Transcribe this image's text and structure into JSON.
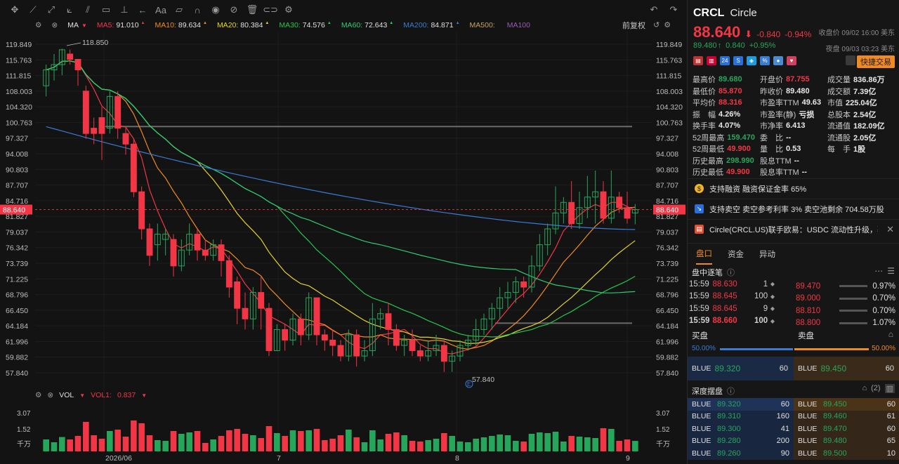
{
  "ma_legend": [
    {
      "label": "MA5:",
      "value": "91.010",
      "color": "#f23645"
    },
    {
      "label": "MA10:",
      "value": "89.634",
      "color": "#f08a24"
    },
    {
      "label": "MA20:",
      "value": "80.384",
      "color": "#e6d22e"
    },
    {
      "label": "MA30:",
      "value": "74.576",
      "color": "#26c64b"
    },
    {
      "label": "MA60:",
      "value": "72.643",
      "color": "#2ecc71"
    },
    {
      "label": "MA200:",
      "value": "84.871",
      "color": "#3a7bd5"
    },
    {
      "label": "MA500:",
      "value": "",
      "color": "#c8a060"
    },
    {
      "label": "MA100",
      "value": "",
      "color": "#9b59b6"
    }
  ],
  "ma_indicator": "MA",
  "fuquan_label": "前复权",
  "vol_indicator": "VOL",
  "vol_value_label": "VOL1:",
  "vol_value": "0.837",
  "price_axis": [
    "119.849",
    "115.763",
    "111.815",
    "108.003",
    "104.320",
    "100.763",
    "97.327",
    "94.008",
    "90.803",
    "87.707",
    "84.716",
    "81.827",
    "79.037",
    "76.342",
    "73.739",
    "71.225",
    "68.796",
    "66.450",
    "64.184",
    "61.996",
    "59.882",
    "57.840"
  ],
  "current_price_tag": "88.640",
  "vol_axis": [
    "3.07",
    "1.52",
    "千万"
  ],
  "date_axis": [
    "2026/06",
    "7",
    "8",
    "9"
  ],
  "annotations": {
    "high": "118.850",
    "low": "57.840",
    "earnings_marker": "E"
  },
  "quote": {
    "code": "CRCL",
    "name": "Circle",
    "price": "88.640",
    "change": "-0.840",
    "change_pct": "-0.94%",
    "close_label": "收盘价 09/02 16:00 美东",
    "ah_price": "89.480",
    "ah_change": "0.840",
    "ah_change_pct": "+0.95%",
    "ah_label": "夜盘 09/03 03:23 美东",
    "quick_trade": "快捷交易"
  },
  "stats": [
    {
      "k": "最高价",
      "v": "89.680",
      "c": "green"
    },
    {
      "k": "开盘价",
      "v": "87.755",
      "c": "red"
    },
    {
      "k": "成交量",
      "v": "836.86万",
      "c": ""
    },
    {
      "k": "最低价",
      "v": "85.870",
      "c": "red"
    },
    {
      "k": "昨收价",
      "v": "89.480",
      "c": ""
    },
    {
      "k": "成交额",
      "v": "7.39亿",
      "c": ""
    },
    {
      "k": "平均价",
      "v": "88.316",
      "c": "red"
    },
    {
      "k": "市盈率TTM",
      "v": "49.63",
      "c": ""
    },
    {
      "k": "市值",
      "v": "225.04亿",
      "c": ""
    },
    {
      "k": "振　幅",
      "v": "4.26%",
      "c": ""
    },
    {
      "k": "市盈率(静)",
      "v": "亏损",
      "c": ""
    },
    {
      "k": "总股本",
      "v": "2.54亿",
      "c": ""
    },
    {
      "k": "换手率",
      "v": "4.07%",
      "c": ""
    },
    {
      "k": "市净率",
      "v": "6.413",
      "c": ""
    },
    {
      "k": "流通值",
      "v": "182.09亿",
      "c": ""
    },
    {
      "k": "52周最高",
      "v": "159.470",
      "c": "green"
    },
    {
      "k": "委　比",
      "v": "--",
      "c": ""
    },
    {
      "k": "流通股",
      "v": "2.05亿",
      "c": ""
    },
    {
      "k": "52周最低",
      "v": "49.900",
      "c": "red"
    },
    {
      "k": "量　比",
      "v": "0.53",
      "c": ""
    },
    {
      "k": "每　手",
      "v": "1股",
      "c": ""
    },
    {
      "k": "历史最高",
      "v": "298.990",
      "c": "green"
    },
    {
      "k": "股息TTM",
      "v": "--",
      "c": ""
    },
    {
      "k": "",
      "v": "",
      "c": ""
    },
    {
      "k": "历史最低",
      "v": "49.900",
      "c": "red"
    },
    {
      "k": "股息率TTM",
      "v": "--",
      "c": ""
    },
    {
      "k": "",
      "v": "",
      "c": ""
    }
  ],
  "notices": [
    {
      "text": "支持融资 融资保证金率 65%",
      "icon": "dollar-icon"
    },
    {
      "text": "支持卖空 卖空参考利率 3% 卖空池剩余 704.58万股",
      "icon": "short-icon"
    },
    {
      "text": "Circle(CRCL.US)联手欧易：USDC 流动性升级，覆...",
      "icon": "news-icon"
    }
  ],
  "tabs": [
    "盘口",
    "资金",
    "异动"
  ],
  "ticks_title": "盘中逐笔",
  "trades": [
    {
      "time": "15:59",
      "price": "88.630",
      "qty": "1"
    },
    {
      "time": "15:59",
      "price": "88.645",
      "qty": "100"
    },
    {
      "time": "15:59",
      "price": "88.645",
      "qty": "9"
    },
    {
      "time": "15:59",
      "price": "88.660",
      "qty": "100"
    }
  ],
  "price_levels": [
    {
      "price": "89.470",
      "pct": "0.97%"
    },
    {
      "price": "89.000",
      "pct": "0.70%"
    },
    {
      "price": "88.810",
      "pct": "0.70%"
    },
    {
      "price": "88.800",
      "pct": "1.07%"
    }
  ],
  "bid_label": "买盘",
  "ask_label": "卖盘",
  "bid_pct": "50.00%",
  "ask_pct": "50.00%",
  "best_bid": {
    "ex": "BLUE",
    "price": "89.320",
    "qty": "60"
  },
  "best_ask": {
    "ex": "BLUE",
    "price": "89.450",
    "qty": "60"
  },
  "depth_title": "深度摆盘",
  "depth_count": "(2)",
  "depth": [
    {
      "bex": "BLUE",
      "bp": "89.320",
      "bq": "60",
      "aex": "BLUE",
      "ap": "89.450",
      "aq": "60"
    },
    {
      "bex": "BLUE",
      "bp": "89.310",
      "bq": "160",
      "aex": "BLUE",
      "ap": "89.460",
      "aq": "61"
    },
    {
      "bex": "BLUE",
      "bp": "89.300",
      "bq": "41",
      "aex": "BLUE",
      "ap": "89.470",
      "aq": "60"
    },
    {
      "bex": "BLUE",
      "bp": "89.280",
      "bq": "200",
      "aex": "BLUE",
      "ap": "89.480",
      "aq": "65"
    },
    {
      "bex": "BLUE",
      "bp": "89.260",
      "bq": "90",
      "aex": "BLUE",
      "ap": "89.500",
      "aq": "10"
    }
  ],
  "colors": {
    "up": "#26a65b",
    "down": "#f23645",
    "accent": "#f08a24",
    "bg": "#131313"
  },
  "chart_data": {
    "type": "candlestick",
    "ylim": [
      56.5,
      121
    ],
    "candles": [
      [
        112,
        115,
        110,
        116
      ],
      [
        115,
        116,
        113,
        118
      ],
      [
        116,
        118.8,
        114,
        119
      ],
      [
        118,
        117,
        116,
        118.85
      ],
      [
        117,
        115,
        112,
        117
      ],
      [
        111,
        103,
        102,
        112
      ],
      [
        104,
        103,
        101,
        106
      ],
      [
        106,
        103,
        98,
        108
      ],
      [
        104,
        110,
        103,
        111
      ],
      [
        110,
        104,
        102,
        111
      ],
      [
        103,
        101,
        99,
        104
      ],
      [
        101,
        92,
        91,
        102
      ],
      [
        92,
        85,
        83,
        93
      ],
      [
        85,
        80,
        78,
        86
      ],
      [
        82,
        84,
        79,
        86
      ],
      [
        83,
        84,
        80,
        85
      ],
      [
        83,
        78,
        76,
        84
      ],
      [
        78,
        81,
        77,
        83
      ],
      [
        81,
        84,
        80,
        86
      ],
      [
        84,
        81,
        79,
        85
      ],
      [
        81,
        80,
        79,
        83
      ],
      [
        80,
        82,
        79,
        83
      ],
      [
        82,
        79,
        76,
        83
      ],
      [
        79,
        74,
        72,
        80
      ],
      [
        75,
        70,
        67,
        76
      ],
      [
        70,
        68,
        66,
        73
      ],
      [
        68,
        73,
        66,
        74
      ],
      [
        73,
        70,
        66,
        76
      ],
      [
        70,
        62,
        61,
        71
      ],
      [
        62,
        66,
        62,
        67
      ],
      [
        66,
        64,
        62,
        67
      ],
      [
        64,
        68,
        63,
        69
      ],
      [
        68,
        65,
        63,
        69
      ],
      [
        65,
        72,
        64,
        73
      ],
      [
        72,
        65,
        63,
        72
      ],
      [
        65,
        64,
        62,
        66
      ],
      [
        64,
        63,
        61,
        66
      ],
      [
        63,
        61,
        60,
        64
      ],
      [
        61,
        65,
        60,
        66
      ],
      [
        65,
        61,
        59,
        66
      ],
      [
        61,
        62,
        60,
        64
      ],
      [
        62,
        68,
        61,
        71
      ],
      [
        68,
        69,
        66,
        70
      ],
      [
        69,
        66,
        63,
        71
      ],
      [
        66,
        63,
        62,
        67
      ],
      [
        63,
        64,
        61,
        65
      ],
      [
        64,
        62,
        61,
        66
      ],
      [
        62,
        61,
        60,
        63
      ],
      [
        61,
        62,
        60,
        64
      ],
      [
        62,
        63,
        61,
        65
      ],
      [
        63,
        60,
        58,
        64
      ],
      [
        60,
        61,
        58,
        62
      ],
      [
        61,
        63,
        60,
        64
      ],
      [
        63,
        64,
        62,
        65
      ],
      [
        64,
        66,
        63,
        68
      ],
      [
        66,
        68,
        65,
        69
      ],
      [
        68,
        70,
        66,
        71
      ],
      [
        70,
        72,
        68,
        74
      ],
      [
        72,
        73,
        70,
        75
      ],
      [
        73,
        75,
        71,
        76
      ],
      [
        75,
        74,
        72,
        76
      ],
      [
        74,
        78,
        73,
        80
      ],
      [
        78,
        82,
        77,
        84
      ],
      [
        82,
        85,
        80,
        86
      ],
      [
        85,
        88,
        84,
        93
      ],
      [
        88,
        90,
        86,
        91
      ],
      [
        90,
        86,
        85,
        94
      ],
      [
        86,
        89,
        85,
        92
      ],
      [
        89,
        91,
        87,
        95
      ],
      [
        91,
        92,
        86,
        96
      ],
      [
        92,
        87,
        86,
        94
      ],
      [
        87,
        91,
        86,
        96
      ],
      [
        91,
        89,
        88,
        92
      ],
      [
        89,
        87,
        86,
        92
      ],
      [
        88,
        88.64,
        85.87,
        89.68
      ]
    ],
    "ma200_start": 104.3,
    "ma200_end": 84.871,
    "horizontal_lines": [
      104.32,
      67.2
    ]
  }
}
